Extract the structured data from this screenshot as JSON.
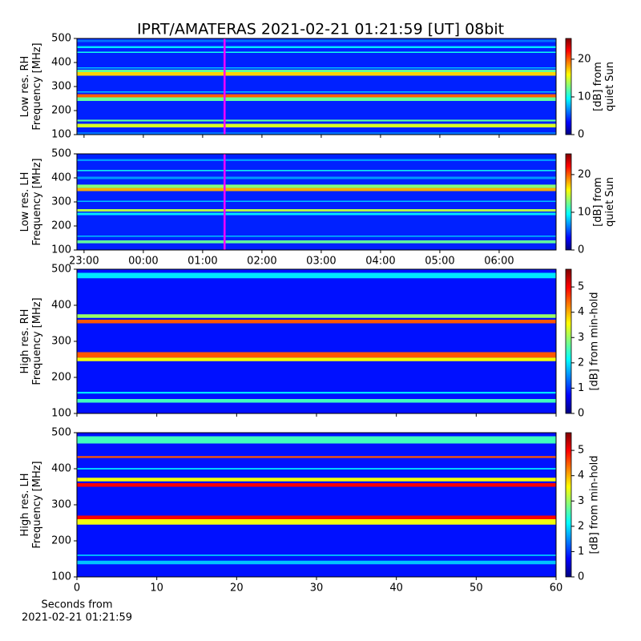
{
  "title": "IPRT/AMATERAS 2021-02-21 01:21:59 [UT]   08bit",
  "chart_data": [
    {
      "type": "heatmap",
      "ylabel": [
        "Low res. RH",
        "Frequency [MHz]"
      ],
      "xlim": [
        22.88,
        30.96
      ],
      "xticks": [
        {
          "value": 23,
          "label": "23:00"
        },
        {
          "value": 24,
          "label": "00:00"
        },
        {
          "value": 25,
          "label": "01:00"
        },
        {
          "value": 26,
          "label": "02:00"
        },
        {
          "value": 27,
          "label": "03:00"
        },
        {
          "value": 28,
          "label": "04:00"
        },
        {
          "value": 29,
          "label": "05:00"
        },
        {
          "value": 30,
          "label": "06:00"
        }
      ],
      "show_xtick_labels": false,
      "ylim": [
        100,
        500
      ],
      "yticks": [
        100,
        200,
        300,
        400,
        500
      ],
      "background": 4,
      "bands": [
        {
          "from": 100,
          "to": 110,
          "value": 6
        },
        {
          "from": 130,
          "to": 145,
          "value": 15
        },
        {
          "from": 155,
          "to": 162,
          "value": 12
        },
        {
          "from": 240,
          "to": 255,
          "value": 12
        },
        {
          "from": 255,
          "to": 268,
          "value": 20
        },
        {
          "from": 275,
          "to": 280,
          "value": 8
        },
        {
          "from": 345,
          "to": 360,
          "value": 17
        },
        {
          "from": 360,
          "to": 370,
          "value": 12
        },
        {
          "from": 375,
          "to": 380,
          "value": 8
        },
        {
          "from": 440,
          "to": 445,
          "value": 10
        },
        {
          "from": 460,
          "to": 468,
          "value": 9
        },
        {
          "from": 485,
          "to": 495,
          "value": 6
        }
      ],
      "vline": {
        "x": 25.37,
        "color": "#ff00ff"
      },
      "colorbar": {
        "colormap": "jet",
        "lim": [
          0,
          25.5
        ],
        "ticks": [
          0,
          10,
          20
        ],
        "label": [
          "[dB] from",
          "quiet Sun"
        ]
      }
    },
    {
      "type": "heatmap",
      "ylabel": [
        "Low res. LH",
        "Frequency [MHz]"
      ],
      "xlim": [
        22.88,
        30.96
      ],
      "xticks": [
        {
          "value": 23,
          "label": "23:00"
        },
        {
          "value": 24,
          "label": "00:00"
        },
        {
          "value": 25,
          "label": "01:00"
        },
        {
          "value": 26,
          "label": "02:00"
        },
        {
          "value": 27,
          "label": "03:00"
        },
        {
          "value": 28,
          "label": "04:00"
        },
        {
          "value": 29,
          "label": "05:00"
        },
        {
          "value": 30,
          "label": "06:00"
        }
      ],
      "show_xtick_labels": true,
      "ylim": [
        100,
        500
      ],
      "yticks": [
        100,
        200,
        300,
        400,
        500
      ],
      "background": 4,
      "bands": [
        {
          "from": 128,
          "to": 140,
          "value": 12
        },
        {
          "from": 155,
          "to": 160,
          "value": 8
        },
        {
          "from": 245,
          "to": 255,
          "value": 9
        },
        {
          "from": 260,
          "to": 270,
          "value": 14
        },
        {
          "from": 300,
          "to": 305,
          "value": 8
        },
        {
          "from": 345,
          "to": 358,
          "value": 18
        },
        {
          "from": 358,
          "to": 372,
          "value": 13
        },
        {
          "from": 395,
          "to": 405,
          "value": 7
        },
        {
          "from": 428,
          "to": 433,
          "value": 10
        },
        {
          "from": 470,
          "to": 478,
          "value": 7
        }
      ],
      "vline": {
        "x": 25.37,
        "color": "#ff00ff"
      },
      "colorbar": {
        "colormap": "jet",
        "lim": [
          0,
          25.5
        ],
        "ticks": [
          0,
          10,
          20
        ],
        "label": [
          "[dB] from",
          "quiet Sun"
        ]
      }
    },
    {
      "type": "heatmap",
      "ylabel": [
        "High res. RH",
        "Frequency [MHz]"
      ],
      "xlim": [
        0,
        60
      ],
      "xticks": [
        0,
        10,
        20,
        30,
        40,
        50,
        60
      ],
      "show_xtick_labels": false,
      "ylim": [
        100,
        500
      ],
      "yticks": [
        100,
        200,
        300,
        400,
        500
      ],
      "background": 0.8,
      "bands": [
        {
          "from": 130,
          "to": 140,
          "value": 2.5
        },
        {
          "from": 155,
          "to": 160,
          "value": 2
        },
        {
          "from": 245,
          "to": 255,
          "value": 3.5
        },
        {
          "from": 255,
          "to": 270,
          "value": 4.5
        },
        {
          "from": 350,
          "to": 360,
          "value": 4.5
        },
        {
          "from": 365,
          "to": 375,
          "value": 3
        },
        {
          "from": 475,
          "to": 490,
          "value": 2
        }
      ],
      "colorbar": {
        "colormap": "jet",
        "lim": [
          0,
          5.7
        ],
        "ticks": [
          0,
          1,
          2,
          3,
          4,
          5
        ],
        "label": [
          "[dB] from min-hold"
        ]
      }
    },
    {
      "type": "heatmap",
      "ylabel": [
        "High res. LH",
        "Frequency [MHz]"
      ],
      "xlim": [
        0,
        60
      ],
      "xticks": [
        0,
        10,
        20,
        30,
        40,
        50,
        60
      ],
      "show_xtick_labels": true,
      "xlabel": [
        "Seconds from",
        "2021-02-21 01:21:59"
      ],
      "ylim": [
        100,
        500
      ],
      "yticks": [
        100,
        200,
        300,
        400,
        500
      ],
      "background": 0.8,
      "bands": [
        {
          "from": 135,
          "to": 145,
          "value": 1.8
        },
        {
          "from": 158,
          "to": 162,
          "value": 1.8
        },
        {
          "from": 245,
          "to": 260,
          "value": 3.5
        },
        {
          "from": 260,
          "to": 270,
          "value": 5
        },
        {
          "from": 350,
          "to": 360,
          "value": 5
        },
        {
          "from": 365,
          "to": 375,
          "value": 3.5
        },
        {
          "from": 398,
          "to": 402,
          "value": 2
        },
        {
          "from": 430,
          "to": 435,
          "value": 4.5
        },
        {
          "from": 470,
          "to": 490,
          "value": 2.5
        }
      ],
      "colorbar": {
        "colormap": "jet",
        "lim": [
          0,
          5.7
        ],
        "ticks": [
          0,
          1,
          2,
          3,
          4,
          5
        ],
        "label": [
          "[dB] from min-hold"
        ]
      }
    }
  ]
}
